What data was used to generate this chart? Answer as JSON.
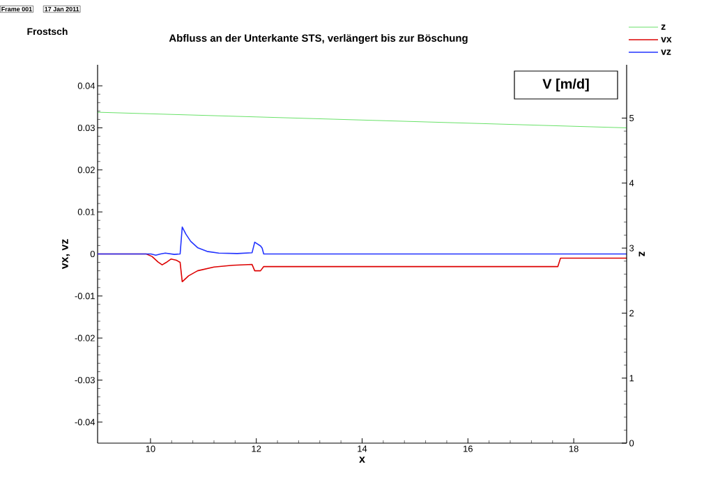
{
  "chart_data": {
    "type": "line",
    "title": "Abfluss an der Unterkante STS, verlängert bis zur Böschung",
    "xlabel": "x",
    "ylabel": "vx, vz",
    "y2label": "z",
    "annotations": [
      "Frame 001",
      "17 Jan 2011",
      "Frostsch",
      "V [m/d]"
    ],
    "xlim": [
      9,
      19
    ],
    "xticks": [
      10,
      12,
      14,
      16,
      18
    ],
    "ylim": [
      -0.045,
      0.045
    ],
    "yticks": [
      -0.04,
      -0.03,
      -0.02,
      -0.01,
      0,
      0.01,
      0.02,
      0.03,
      0.04
    ],
    "y2lim": [
      0,
      5.82
    ],
    "y2ticks": [
      0,
      1,
      2,
      3,
      4,
      5
    ],
    "legend": "top right",
    "grid": false,
    "marker": "none",
    "line_style": "solid",
    "series": [
      {
        "name": "z",
        "color": "#00cc00",
        "axis": "y2",
        "x": [
          9,
          19
        ],
        "values": [
          5.09,
          4.85
        ]
      },
      {
        "name": "vx",
        "color": "#dd0000",
        "x": [
          9.0,
          9.92,
          10.03,
          10.14,
          10.22,
          10.3,
          10.39,
          10.49,
          10.56,
          10.6,
          10.72,
          10.89,
          11.2,
          11.55,
          11.92,
          11.97,
          12.08,
          12.14,
          17.7,
          17.75,
          19.0
        ],
        "values": [
          0,
          0,
          -0.0006,
          -0.0019,
          -0.0026,
          -0.002,
          -0.0012,
          -0.0015,
          -0.002,
          -0.0066,
          -0.0052,
          -0.004,
          -0.0031,
          -0.0027,
          -0.0025,
          -0.004,
          -0.004,
          -0.003,
          -0.003,
          -0.001,
          -0.001
        ]
      },
      {
        "name": "vz",
        "color": "#2233ff",
        "x": [
          9.0,
          10.01,
          10.1,
          10.19,
          10.28,
          10.45,
          10.56,
          10.6,
          10.67,
          10.76,
          10.89,
          11.07,
          11.29,
          11.64,
          11.92,
          11.97,
          12.08,
          12.11,
          12.14,
          19.0
        ],
        "values": [
          0,
          0,
          -0.0003,
          0,
          0.0002,
          -0.0001,
          0,
          0.0064,
          0.0047,
          0.003,
          0.0015,
          0.0006,
          0.0002,
          0.0001,
          0.0003,
          0.0028,
          0.0019,
          0.0014,
          0,
          0
        ]
      }
    ]
  }
}
